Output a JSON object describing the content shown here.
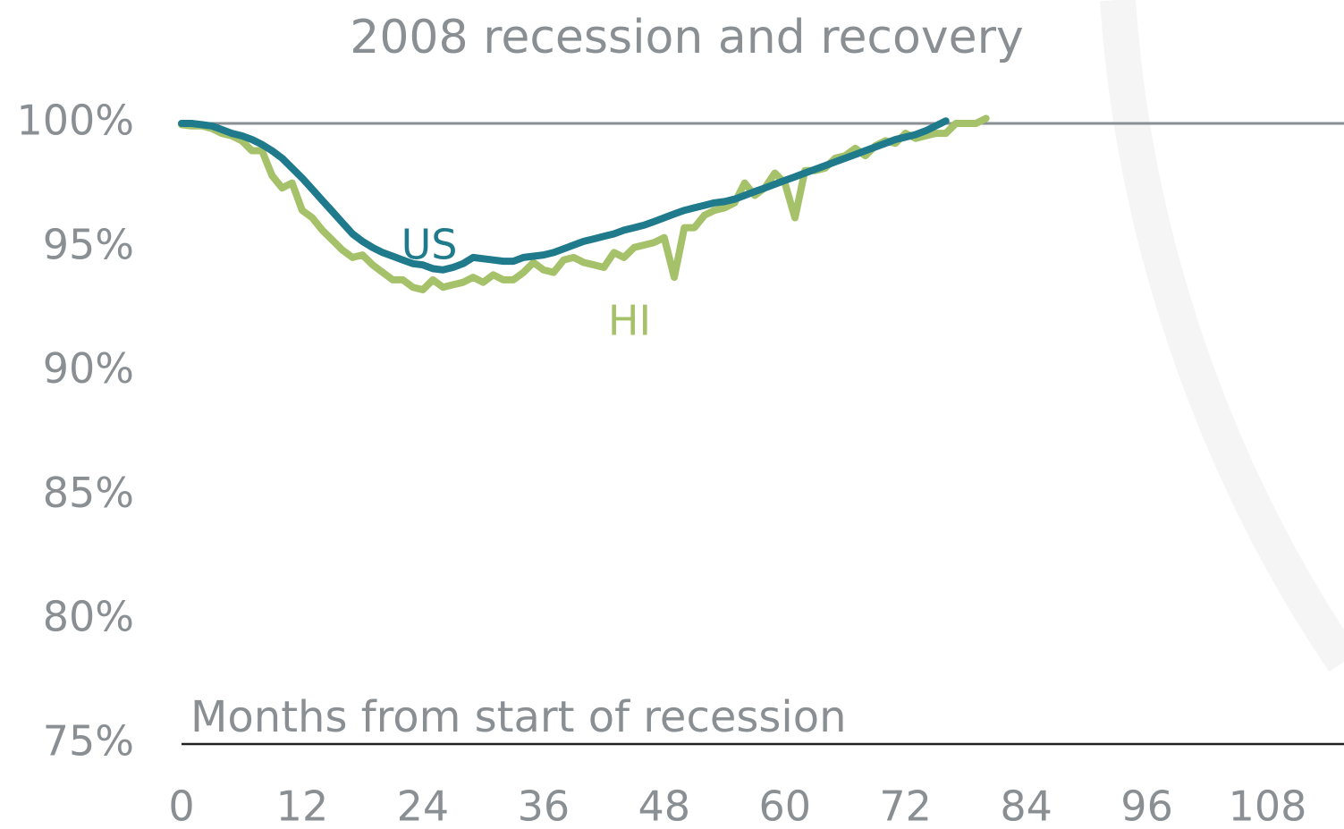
{
  "chart_data": {
    "type": "line",
    "title": "2008 recession and recovery",
    "x_label": "Months from start of recession",
    "x": [
      0,
      1,
      2,
      3,
      4,
      5,
      6,
      7,
      8,
      9,
      10,
      11,
      12,
      13,
      14,
      15,
      16,
      17,
      18,
      19,
      20,
      21,
      22,
      23,
      24,
      25,
      26,
      27,
      28,
      29,
      30,
      31,
      32,
      33,
      34,
      35,
      36,
      37,
      38,
      39,
      40,
      41,
      42,
      43,
      44,
      45,
      46,
      47,
      48,
      49,
      50,
      51,
      52,
      53,
      54,
      55,
      56,
      57,
      58,
      59,
      60,
      61,
      62,
      63,
      64,
      65,
      66,
      67,
      68,
      69,
      70,
      71,
      72,
      73,
      74,
      75,
      76,
      77,
      78,
      79,
      80
    ],
    "series": [
      {
        "name": "HI",
        "color": "#a5c26a",
        "values": [
          99.95,
          99.9,
          99.9,
          99.8,
          99.6,
          99.5,
          99.3,
          98.9,
          98.9,
          97.9,
          97.4,
          97.6,
          96.5,
          96.2,
          95.7,
          95.3,
          94.9,
          94.6,
          94.7,
          94.3,
          94.0,
          93.7,
          93.7,
          93.4,
          93.3,
          93.7,
          93.4,
          93.5,
          93.6,
          93.8,
          93.6,
          93.9,
          93.7,
          93.7,
          94.0,
          94.4,
          94.1,
          94.0,
          94.5,
          94.6,
          94.4,
          94.3,
          94.2,
          94.8,
          94.6,
          95.0,
          95.1,
          95.2,
          95.4,
          93.8,
          95.8,
          95.8,
          96.3,
          96.5,
          96.6,
          96.8,
          97.6,
          97.1,
          97.4,
          98.0,
          97.6,
          96.2,
          98.1,
          98.1,
          98.2,
          98.6,
          98.7,
          99.0,
          98.7,
          99.1,
          99.3,
          99.2,
          99.6,
          99.4,
          99.5,
          99.6,
          99.6,
          100.0,
          100.0,
          100.0,
          100.2
        ]
      },
      {
        "name": "US",
        "color": "#1f7a8c",
        "values": [
          100.0,
          100.0,
          99.95,
          99.9,
          99.75,
          99.6,
          99.5,
          99.35,
          99.15,
          98.9,
          98.6,
          98.2,
          97.8,
          97.35,
          96.9,
          96.45,
          96.0,
          95.55,
          95.25,
          95.0,
          94.8,
          94.65,
          94.5,
          94.35,
          94.3,
          94.15,
          94.1,
          94.2,
          94.35,
          94.6,
          94.55,
          94.5,
          94.45,
          94.45,
          94.6,
          94.65,
          94.7,
          94.8,
          94.95,
          95.1,
          95.25,
          95.35,
          95.45,
          95.55,
          95.7,
          95.8,
          95.9,
          96.05,
          96.2,
          96.35,
          96.5,
          96.6,
          96.7,
          96.8,
          96.85,
          96.95,
          97.1,
          97.25,
          97.4,
          97.55,
          97.7,
          97.85,
          98.0,
          98.15,
          98.3,
          98.45,
          98.6,
          98.75,
          98.9,
          99.05,
          99.2,
          99.35,
          99.45,
          99.55,
          99.7,
          99.9,
          100.1,
          null,
          null,
          null,
          null
        ]
      }
    ],
    "xlim": [
      0,
      115.6
    ],
    "xticks": [
      0,
      12,
      24,
      36,
      48,
      60,
      72,
      84,
      96,
      108
    ],
    "ylim": [
      75,
      100
    ],
    "yticks": [
      {
        "value": 75,
        "label": "75%"
      },
      {
        "value": 80,
        "label": "80%"
      },
      {
        "value": 85,
        "label": "85%"
      },
      {
        "value": 90,
        "label": "90%"
      },
      {
        "value": 95,
        "label": "95%"
      },
      {
        "value": 100,
        "label": "100%"
      }
    ],
    "reference_line": 100
  }
}
